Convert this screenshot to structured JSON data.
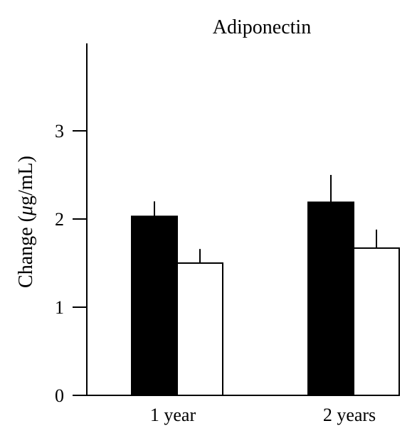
{
  "chart_data": {
    "type": "bar",
    "title": "Adiponectin",
    "xlabel": "",
    "ylabel": "Change (μg/mL)",
    "ylabel_parts": {
      "prefix": "Change (",
      "unit_symbol": "μ",
      "unit_rest": "g/mL)"
    },
    "categories": [
      "1 year",
      "2 years"
    ],
    "series": [
      {
        "color": "#000000",
        "values": [
          2.03,
          2.19
        ],
        "errors": [
          0.17,
          0.31
        ]
      },
      {
        "color": "#ffffff",
        "values": [
          1.5,
          1.67
        ],
        "errors": [
          0.16,
          0.21
        ]
      }
    ],
    "yticks": [
      0,
      1,
      2,
      3
    ],
    "ytick_labels": [
      "0",
      "1",
      "2",
      "3"
    ],
    "ylim": [
      0,
      4
    ],
    "grid": false,
    "legend": "none"
  }
}
